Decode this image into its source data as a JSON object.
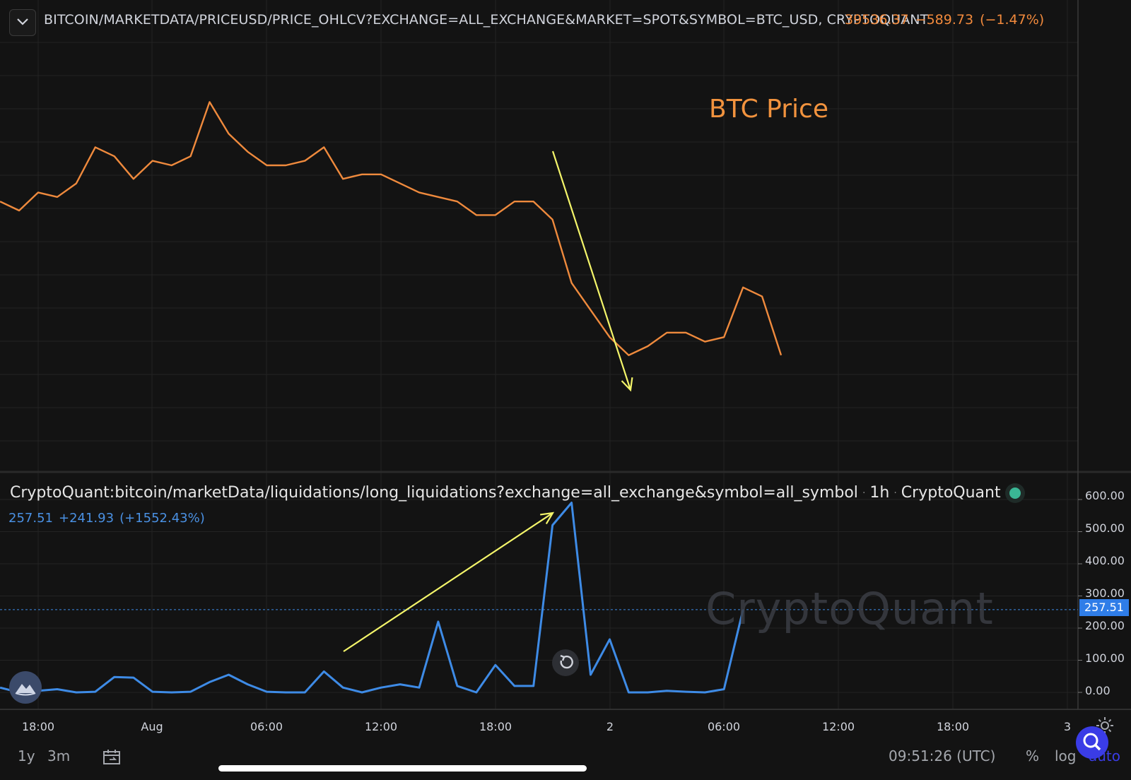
{
  "header": {
    "title": "BITCOIN/MARKETDATA/PRICEUSD/PRICE_OHLCV?EXCHANGE=ALL_EXCHANGE&MARKET=SPOT&SYMBOL=BTC_USD, CRYPTOQUANT",
    "last": "39536.37",
    "change": "−589.73",
    "change_pct": "(−1.47%)"
  },
  "price_annotation": "BTC Price",
  "sub": {
    "title": "CryptoQuant:bitcoin/marketData/liquidations/long_liquidations?exchange=all_exchange&symbol=all_symbol",
    "interval": "1h",
    "source": "CryptoQuant",
    "last": "257.51",
    "change": "+241.93",
    "change_pct": "(+1552.43%)",
    "current_tag": "257.51"
  },
  "watermark": "CryptoQuant",
  "y_ticks": [
    "600.00",
    "500.00",
    "400.00",
    "300.00",
    "200.00",
    "100.00",
    "0.00"
  ],
  "x_ticks": [
    "18:00",
    "Aug",
    "06:00",
    "12:00",
    "18:00",
    "2",
    "06:00",
    "12:00",
    "18:00",
    "3"
  ],
  "bottom": {
    "range_1y": "1y",
    "range_3m": "3m",
    "clock": "09:51:26 (UTC)",
    "pct": "%",
    "log": "log",
    "auto": "auto"
  },
  "colors": {
    "price_line": "#ef8a3d",
    "liq_line": "#3e8be6",
    "arrow": "#f4f56a",
    "grid": "#232323",
    "current_line": "#3e8be6"
  },
  "chart_data": [
    {
      "type": "line",
      "title": "BITCOIN/MARKETDATA/PRICEUSD/PRICE_OHLCV?EXCHANGE=ALL_EXCHANGE&MARKET=SPOT&SYMBOL=BTC_USD, CRYPTOQUANT",
      "x_unit": "hours since Jul 31 18:00 UTC",
      "x": [
        -2,
        -1,
        0,
        1,
        2,
        3,
        4,
        5,
        6,
        7,
        8,
        9,
        10,
        11,
        12,
        13,
        14,
        15,
        16,
        17,
        18,
        19,
        20,
        21,
        22,
        23,
        24,
        25,
        26,
        27,
        28,
        29,
        30,
        31,
        32,
        33,
        34,
        35,
        36,
        37,
        38,
        39,
        40,
        41,
        42,
        43,
        44,
        45,
        46,
        47,
        48,
        49,
        50,
        51,
        52,
        53,
        54,
        55,
        56,
        57,
        58,
        59,
        60,
        61,
        62,
        63,
        64,
        65,
        66,
        67,
        68,
        69,
        70
      ],
      "series": [
        {
          "name": "BTC Price",
          "values_rel": [
            0.57,
            0.55,
            0.59,
            0.58,
            0.61,
            0.69,
            0.67,
            0.62,
            0.66,
            0.65,
            0.67,
            0.79,
            0.72,
            0.68,
            0.65,
            0.65,
            0.66,
            0.69,
            0.62,
            0.63,
            0.63,
            0.61,
            0.59,
            0.58,
            0.57,
            0.54,
            0.54,
            0.57,
            0.57,
            0.53,
            0.39,
            0.33,
            0.27,
            0.23,
            0.25,
            0.28,
            0.28,
            0.26,
            0.27,
            0.38,
            0.36,
            0.23,
            null,
            null,
            null,
            null,
            null,
            null,
            null,
            null,
            null,
            null,
            null,
            null,
            null,
            null,
            null,
            null,
            null,
            null,
            null,
            null,
            null,
            null,
            null,
            null,
            null,
            null,
            null,
            null,
            null,
            null,
            null
          ]
        }
      ],
      "annotations": [
        "BTC Price"
      ],
      "last_value": 39536.37
    },
    {
      "type": "line",
      "title": "CryptoQuant:bitcoin/marketData/liquidations/long_liquidations?exchange=all_exchange&symbol=all_symbol",
      "ylabel": "",
      "ylim": [
        0,
        600
      ],
      "x_unit": "hours since Jul 31 18:00 UTC",
      "x": [
        -2,
        -1,
        0,
        1,
        2,
        3,
        4,
        5,
        6,
        7,
        8,
        9,
        10,
        11,
        12,
        13,
        14,
        15,
        16,
        17,
        18,
        19,
        20,
        21,
        22,
        23,
        24,
        25,
        26,
        27,
        28,
        29,
        30,
        31,
        32,
        33,
        34,
        35,
        36,
        37,
        38,
        39,
        40,
        41
      ],
      "series": [
        {
          "name": "long_liquidations",
          "values": [
            15,
            0,
            5,
            10,
            0,
            2,
            48,
            46,
            2,
            0,
            2,
            32,
            55,
            25,
            2,
            0,
            0,
            65,
            15,
            0,
            15,
            25,
            15,
            220,
            20,
            0,
            85,
            20,
            20,
            520,
            590,
            55,
            165,
            0,
            0,
            5,
            2,
            0,
            10,
            257.51,
            null,
            null,
            null,
            null
          ]
        }
      ],
      "current_value": 257.51
    }
  ]
}
